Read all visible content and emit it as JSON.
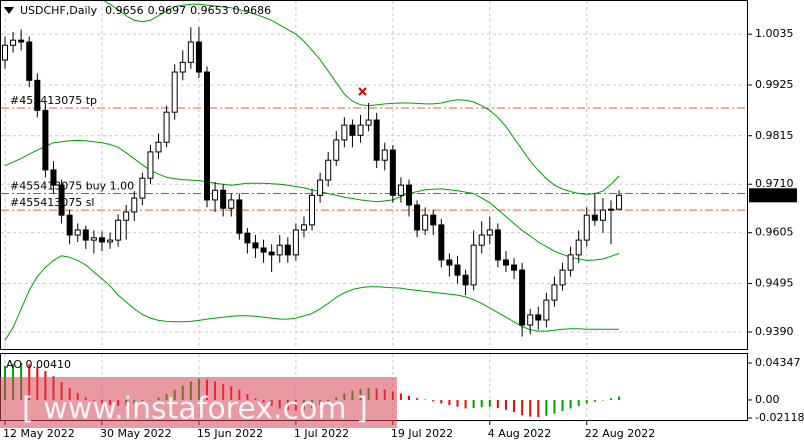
{
  "chart_data": [
    {
      "type": "candlestick",
      "title": "USDCHF,Daily",
      "categories": [
        "12 May 2022",
        null,
        null,
        null,
        null,
        null,
        null,
        null,
        null,
        null,
        null,
        null,
        "30 May 2022",
        null,
        null,
        null,
        null,
        null,
        null,
        null,
        null,
        null,
        null,
        null,
        "15 Jun 2022",
        null,
        null,
        null,
        null,
        null,
        null,
        null,
        null,
        null,
        null,
        null,
        "1 Jul 2022",
        null,
        null,
        null,
        null,
        null,
        null,
        null,
        null,
        null,
        null,
        null,
        "19 Jul 2022",
        null,
        null,
        null,
        null,
        null,
        null,
        null,
        null,
        null,
        null,
        null,
        "4 Aug 2022",
        null,
        null,
        null,
        null,
        null,
        null,
        null,
        null,
        null,
        null,
        null,
        "22 Aug 2022",
        null,
        null,
        null,
        null
      ],
      "open": [
        0.9979,
        1.0011,
        1.0022,
        1.0018,
        0.9935,
        0.987,
        0.9741,
        0.9708,
        0.9643,
        0.96,
        0.9611,
        0.9589,
        0.9594,
        0.9585,
        0.9589,
        0.9632,
        0.965,
        0.968,
        0.9723,
        0.978,
        0.9801,
        0.9866,
        0.9953,
        0.9974,
        1.0018,
        0.9953,
        0.9676,
        0.9697,
        0.9658,
        0.9676,
        0.9604,
        0.9583,
        0.9572,
        0.9563,
        0.9557,
        0.9578,
        0.9557,
        0.9611,
        0.9622,
        0.9686,
        0.9719,
        0.9762,
        0.9806,
        0.9838,
        0.9816,
        0.9838,
        0.9849,
        0.9762,
        0.9784,
        0.9686,
        0.9708,
        0.9665,
        0.9611,
        0.9643,
        0.9622,
        0.9546,
        0.9535,
        0.9513,
        0.9492,
        0.9578,
        0.96,
        0.9611,
        0.9546,
        0.9535,
        0.9524,
        0.9405,
        0.9427,
        0.9416,
        0.9459,
        0.9492,
        0.9524,
        0.9557,
        0.9589,
        0.9643,
        0.9632,
        0.9654,
        0.9656
      ],
      "high": [
        1.003,
        1.004,
        1.0045,
        1.003,
        0.995,
        0.9885,
        0.976,
        0.972,
        0.9655,
        0.9625,
        0.962,
        0.961,
        0.9608,
        0.9605,
        0.9645,
        0.9665,
        0.9695,
        0.9735,
        0.9795,
        0.982,
        0.988,
        0.997,
        1.0,
        1.005,
        1.005,
        0.9965,
        0.9715,
        0.971,
        0.969,
        0.969,
        0.9615,
        0.96,
        0.959,
        0.958,
        0.96,
        0.9595,
        0.9625,
        0.964,
        0.97,
        0.9735,
        0.978,
        0.9825,
        0.9855,
        0.985,
        0.986,
        0.9886,
        0.9865,
        0.98,
        0.9795,
        0.9725,
        0.972,
        0.9675,
        0.966,
        0.9655,
        0.9635,
        0.956,
        0.9555,
        0.9525,
        0.961,
        0.963,
        0.964,
        0.9625,
        0.9565,
        0.955,
        0.954,
        0.944,
        0.9445,
        0.9475,
        0.951,
        0.954,
        0.9575,
        0.961,
        0.966,
        0.969,
        0.968,
        0.9675,
        0.9697
      ],
      "low": [
        0.996,
        0.9995,
        1.0,
        0.992,
        0.9855,
        0.9725,
        0.969,
        0.9625,
        0.958,
        0.9585,
        0.957,
        0.956,
        0.9565,
        0.957,
        0.9575,
        0.959,
        0.963,
        0.9665,
        0.971,
        0.9765,
        0.979,
        0.985,
        0.9935,
        0.996,
        0.994,
        0.966,
        0.965,
        0.964,
        0.964,
        0.959,
        0.956,
        0.955,
        0.954,
        0.952,
        0.954,
        0.954,
        0.9545,
        0.9595,
        0.961,
        0.967,
        0.9705,
        0.975,
        0.979,
        0.979,
        0.98,
        0.9825,
        0.9745,
        0.974,
        0.967,
        0.967,
        0.964,
        0.9595,
        0.96,
        0.96,
        0.953,
        0.951,
        0.9495,
        0.947,
        0.948,
        0.956,
        0.958,
        0.953,
        0.952,
        0.9505,
        0.938,
        0.9385,
        0.9395,
        0.94,
        0.9445,
        0.948,
        0.951,
        0.954,
        0.9575,
        0.962,
        0.9605,
        0.958,
        0.9653
      ],
      "close": [
        1.0011,
        1.0022,
        1.0018,
        0.9935,
        0.987,
        0.9741,
        0.9708,
        0.9643,
        0.96,
        0.9611,
        0.9589,
        0.9594,
        0.9585,
        0.9589,
        0.9632,
        0.965,
        0.968,
        0.9723,
        0.978,
        0.9801,
        0.9866,
        0.9953,
        0.9974,
        1.0018,
        0.9953,
        0.9676,
        0.9697,
        0.9658,
        0.9676,
        0.9604,
        0.9583,
        0.9572,
        0.9563,
        0.9557,
        0.9578,
        0.9557,
        0.9611,
        0.9622,
        0.9686,
        0.9719,
        0.9762,
        0.9806,
        0.9838,
        0.9816,
        0.9838,
        0.9849,
        0.9762,
        0.9784,
        0.9686,
        0.9708,
        0.9665,
        0.9611,
        0.9643,
        0.9622,
        0.9546,
        0.9535,
        0.9513,
        0.9492,
        0.9578,
        0.96,
        0.9611,
        0.9546,
        0.9535,
        0.9524,
        0.9405,
        0.9427,
        0.9416,
        0.9459,
        0.9492,
        0.9524,
        0.9557,
        0.9589,
        0.9643,
        0.9632,
        0.9654,
        0.9656,
        0.9686
      ],
      "up_color": "#ffffff",
      "down_color": "#000000",
      "wick_color": "#000000",
      "bands": {
        "color": "#00a000",
        "upper": [
          1.014,
          1.0145,
          1.015,
          1.015,
          1.015,
          1.0148,
          1.0145,
          1.014,
          1.0135,
          1.013,
          1.0125,
          1.0118,
          1.011,
          1.01,
          1.0088,
          1.0075,
          1.0065,
          1.0062,
          1.0065,
          1.0075,
          1.0085,
          1.0095,
          1.0098,
          1.01,
          1.01,
          1.0098,
          1.0096,
          1.0094,
          1.0092,
          1.0088,
          1.0083,
          1.0078,
          1.0072,
          1.0065,
          1.0055,
          1.0045,
          1.0035,
          1.002,
          1.0,
          0.998,
          0.9955,
          0.993,
          0.9905,
          0.989,
          0.9882,
          0.988,
          0.9882,
          0.9884,
          0.9885,
          0.9886,
          0.9886,
          0.9885,
          0.9884,
          0.9884,
          0.9886,
          0.989,
          0.9893,
          0.9892,
          0.9888,
          0.988,
          0.987,
          0.9855,
          0.9835,
          0.981,
          0.9785,
          0.976,
          0.974,
          0.9722,
          0.9708,
          0.97,
          0.9694,
          0.969,
          0.9688,
          0.969,
          0.9695,
          0.971,
          0.9728
        ],
        "middle": [
          0.975,
          0.9758,
          0.9766,
          0.9775,
          0.9784,
          0.9792,
          0.98,
          0.9802,
          0.9804,
          0.9805,
          0.9804,
          0.9802,
          0.98,
          0.9796,
          0.979,
          0.9778,
          0.9765,
          0.9752,
          0.974,
          0.9732,
          0.9725,
          0.9722,
          0.972,
          0.9719,
          0.9718,
          0.9715,
          0.9712,
          0.971,
          0.9708,
          0.971,
          0.9712,
          0.9712,
          0.9712,
          0.9711,
          0.971,
          0.9708,
          0.9705,
          0.9702,
          0.9698,
          0.9694,
          0.969,
          0.9686,
          0.9682,
          0.9679,
          0.9676,
          0.9674,
          0.9672,
          0.9674,
          0.9676,
          0.9683,
          0.969,
          0.9694,
          0.9698,
          0.9699,
          0.97,
          0.9698,
          0.9696,
          0.9693,
          0.969,
          0.968,
          0.967,
          0.9655,
          0.964,
          0.9625,
          0.961,
          0.9598,
          0.9585,
          0.9575,
          0.9565,
          0.9558,
          0.9552,
          0.9548,
          0.9545,
          0.9546,
          0.9548,
          0.9554,
          0.956
        ],
        "lower": [
          0.9372,
          0.94,
          0.944,
          0.948,
          0.951,
          0.953,
          0.9545,
          0.9555,
          0.9552,
          0.9545,
          0.9535,
          0.952,
          0.9505,
          0.949,
          0.947,
          0.9455,
          0.944,
          0.9428,
          0.942,
          0.9415,
          0.9413,
          0.9412,
          0.9412,
          0.9413,
          0.9415,
          0.9418,
          0.942,
          0.9422,
          0.9424,
          0.9425,
          0.9425,
          0.9424,
          0.9422,
          0.942,
          0.9418,
          0.9418,
          0.942,
          0.9425,
          0.943,
          0.944,
          0.9452,
          0.9465,
          0.9475,
          0.9482,
          0.9486,
          0.9488,
          0.9488,
          0.9487,
          0.9486,
          0.9485,
          0.9482,
          0.948,
          0.9478,
          0.9476,
          0.9474,
          0.9472,
          0.947,
          0.9466,
          0.946,
          0.9452,
          0.9442,
          0.9432,
          0.9422,
          0.9412,
          0.9402,
          0.9395,
          0.9392,
          0.9392,
          0.9394,
          0.9396,
          0.9397,
          0.9397,
          0.9396,
          0.9396,
          0.9396,
          0.9396,
          0.9396
        ]
      },
      "levels": [
        {
          "label": "#455413075 tp",
          "value": 0.9875,
          "color": "#e8602c"
        },
        {
          "label": "#455413075 buy 1.00",
          "value": 0.969,
          "color": "#3c8c3c"
        },
        {
          "label": "#455413075 sl",
          "value": 0.9654,
          "color": "#e8602c"
        }
      ],
      "ylim": [
        0.9351,
        1.0109
      ],
      "yticks": [
        1.0035,
        0.9925,
        0.9815,
        {
          "value": 0.971,
          "label": "0.9710"
        },
        0.9605,
        0.9495,
        {
          "value": 0.939,
          "label": "0.9390"
        }
      ],
      "grid": true
    },
    {
      "type": "bar",
      "title": "AO 0.00410",
      "values": [
        0.04,
        0.042,
        0.0435,
        0.042,
        0.039,
        0.034,
        0.028,
        0.021,
        0.014,
        0.008,
        0.003,
        -0.001,
        -0.004,
        -0.006,
        -0.007,
        -0.0065,
        -0.005,
        -0.003,
        0.0,
        0.003,
        0.007,
        0.012,
        0.017,
        0.022,
        0.025,
        0.024,
        0.022,
        0.019,
        0.016,
        0.012,
        0.007,
        0.002,
        -0.003,
        -0.007,
        -0.01,
        -0.012,
        -0.0125,
        -0.0115,
        -0.0095,
        -0.006,
        -0.002,
        0.003,
        0.008,
        0.011,
        0.013,
        0.014,
        0.0135,
        0.0125,
        0.01,
        0.0075,
        0.005,
        0.002,
        0.0005,
        -0.0015,
        -0.004,
        -0.006,
        -0.008,
        -0.01,
        -0.0095,
        -0.0085,
        -0.008,
        -0.0095,
        -0.0115,
        -0.014,
        -0.018,
        -0.0195,
        -0.02,
        -0.0185,
        -0.016,
        -0.013,
        -0.01,
        -0.007,
        -0.004,
        -0.002,
        0.0,
        0.002,
        0.0041
      ],
      "up_color": "#00a000",
      "down_color": "#ff0000",
      "ylim": [
        -0.0247,
        0.0552
      ],
      "yticks": [
        0.04347,
        {
          "value": 0,
          "label": "0.00"
        },
        -0.02118
      ],
      "grid": false
    }
  ],
  "watermark": "[ www.instaforex.com ]"
}
